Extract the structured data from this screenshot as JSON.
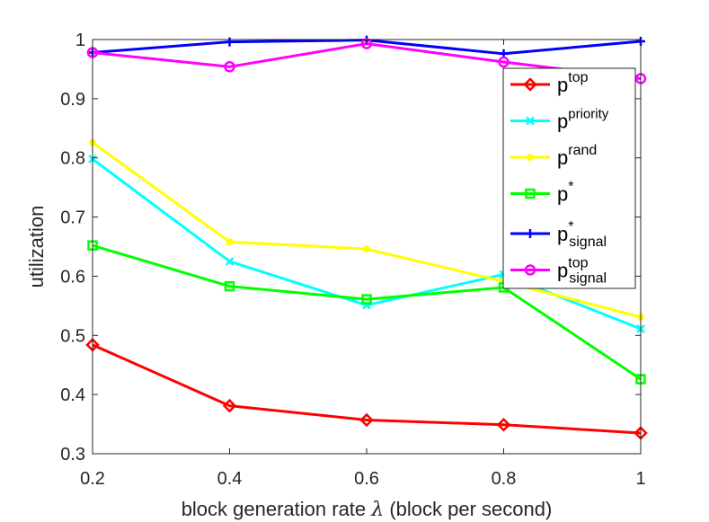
{
  "chart_data": {
    "type": "line",
    "x": [
      0.2,
      0.4,
      0.6,
      0.8,
      1
    ],
    "xlim": [
      0.2,
      1
    ],
    "ylim": [
      0.3,
      1
    ],
    "xticks": [
      "0.2",
      "0.4",
      "0.6",
      "0.8",
      "1"
    ],
    "yticks": [
      "0.3",
      "0.4",
      "0.5",
      "0.6",
      "0.7",
      "0.8",
      "0.9",
      "1"
    ],
    "xlabel_prefix": "block generation rate ",
    "xlabel_symbol": "λ",
    "xlabel_suffix": " (block per second)",
    "ylabel": "utilization",
    "legend_position": "top-right",
    "series": [
      {
        "name": "p",
        "sup": "top",
        "sub": "",
        "color": "#ff0000",
        "marker": "diamond",
        "values": [
          0.484,
          0.381,
          0.357,
          0.349,
          0.335
        ]
      },
      {
        "name": "p",
        "sup": "priority",
        "sub": "",
        "color": "#00ffff",
        "marker": "x",
        "values": [
          0.798,
          0.625,
          0.551,
          0.603,
          0.511
        ]
      },
      {
        "name": "p",
        "sup": "rand",
        "sub": "",
        "color": "#ffff00",
        "marker": "dot",
        "values": [
          0.826,
          0.658,
          0.646,
          0.591,
          0.531
        ]
      },
      {
        "name": "p",
        "sup": "*",
        "sub": "",
        "color": "#00ff00",
        "marker": "square",
        "values": [
          0.652,
          0.583,
          0.561,
          0.581,
          0.426
        ]
      },
      {
        "name": "p",
        "sup": "*",
        "sub": "signal",
        "color": "#0000ff",
        "marker": "plus",
        "values": [
          0.978,
          0.996,
          0.999,
          0.976,
          0.997
        ]
      },
      {
        "name": "p",
        "sup": "top",
        "sub": "signal",
        "color": "#ff00ff",
        "marker": "circle",
        "values": [
          0.978,
          0.954,
          0.993,
          0.962,
          0.934
        ]
      }
    ]
  }
}
